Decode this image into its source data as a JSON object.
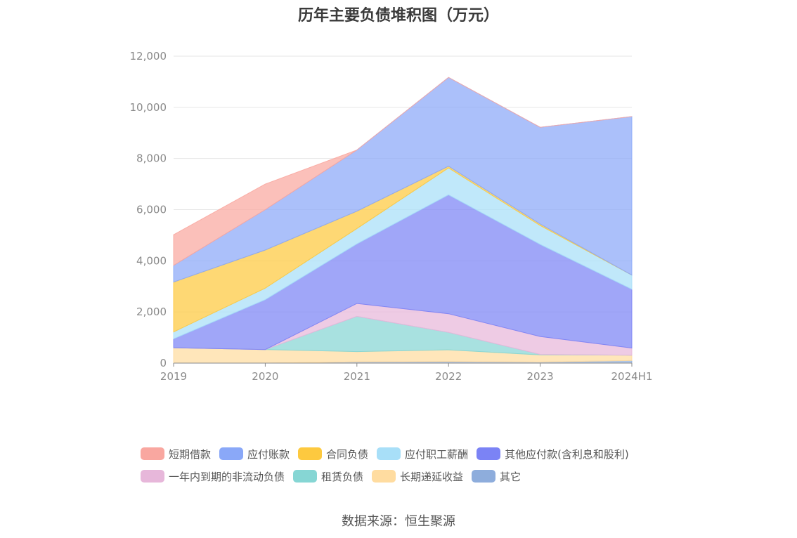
{
  "chart_data": {
    "type": "area",
    "stacked": true,
    "title": "历年主要负债堆积图（万元）",
    "categories": [
      "2019",
      "2020",
      "2021",
      "2022",
      "2023",
      "2024H1"
    ],
    "y_ticks": [
      "0",
      "2,000",
      "4,000",
      "6,000",
      "8,000",
      "10,000",
      "12,000"
    ],
    "ylim": [
      0,
      12000
    ],
    "grid": true,
    "legend_position": "bottom",
    "series": [
      {
        "name": "其它",
        "color": "#8eaddc",
        "values": [
          0,
          0,
          50,
          60,
          40,
          100
        ]
      },
      {
        "name": "长期递延收益",
        "color": "#ffdca0",
        "values": [
          600,
          530,
          400,
          460,
          280,
          210
        ]
      },
      {
        "name": "租赁负债",
        "color": "#86d6d4",
        "values": [
          0,
          0,
          1380,
          680,
          20,
          0
        ]
      },
      {
        "name": "一年内到期的非流动负债",
        "color": "#e7b7da",
        "values": [
          0,
          0,
          500,
          730,
          700,
          280
        ]
      },
      {
        "name": "其他应付款(含利息和股利)",
        "color": "#7b83f5",
        "values": [
          350,
          1950,
          2330,
          4650,
          3600,
          2300
        ]
      },
      {
        "name": "应付职工薪酬",
        "color": "#a8dff8",
        "values": [
          270,
          450,
          600,
          1050,
          740,
          550
        ]
      },
      {
        "name": "合同负债",
        "color": "#fdc93f",
        "values": [
          1950,
          1490,
          680,
          70,
          60,
          0
        ]
      },
      {
        "name": "应付账款",
        "color": "#8aa8f8",
        "values": [
          650,
          1580,
          2390,
          3470,
          3780,
          6200
        ]
      },
      {
        "name": "短期借款",
        "color": "#f9a7a0",
        "values": [
          1200,
          1000,
          0,
          0,
          0,
          0
        ]
      }
    ],
    "legend": [
      [
        "短期借款",
        "应付账款",
        "合同负债",
        "应付职工薪酬",
        "其他应付款(含利息和股利)"
      ],
      [
        "一年内到期的非流动负债",
        "租赁负债",
        "长期递延收益",
        "其它"
      ]
    ]
  },
  "source": "数据来源：恒生聚源"
}
